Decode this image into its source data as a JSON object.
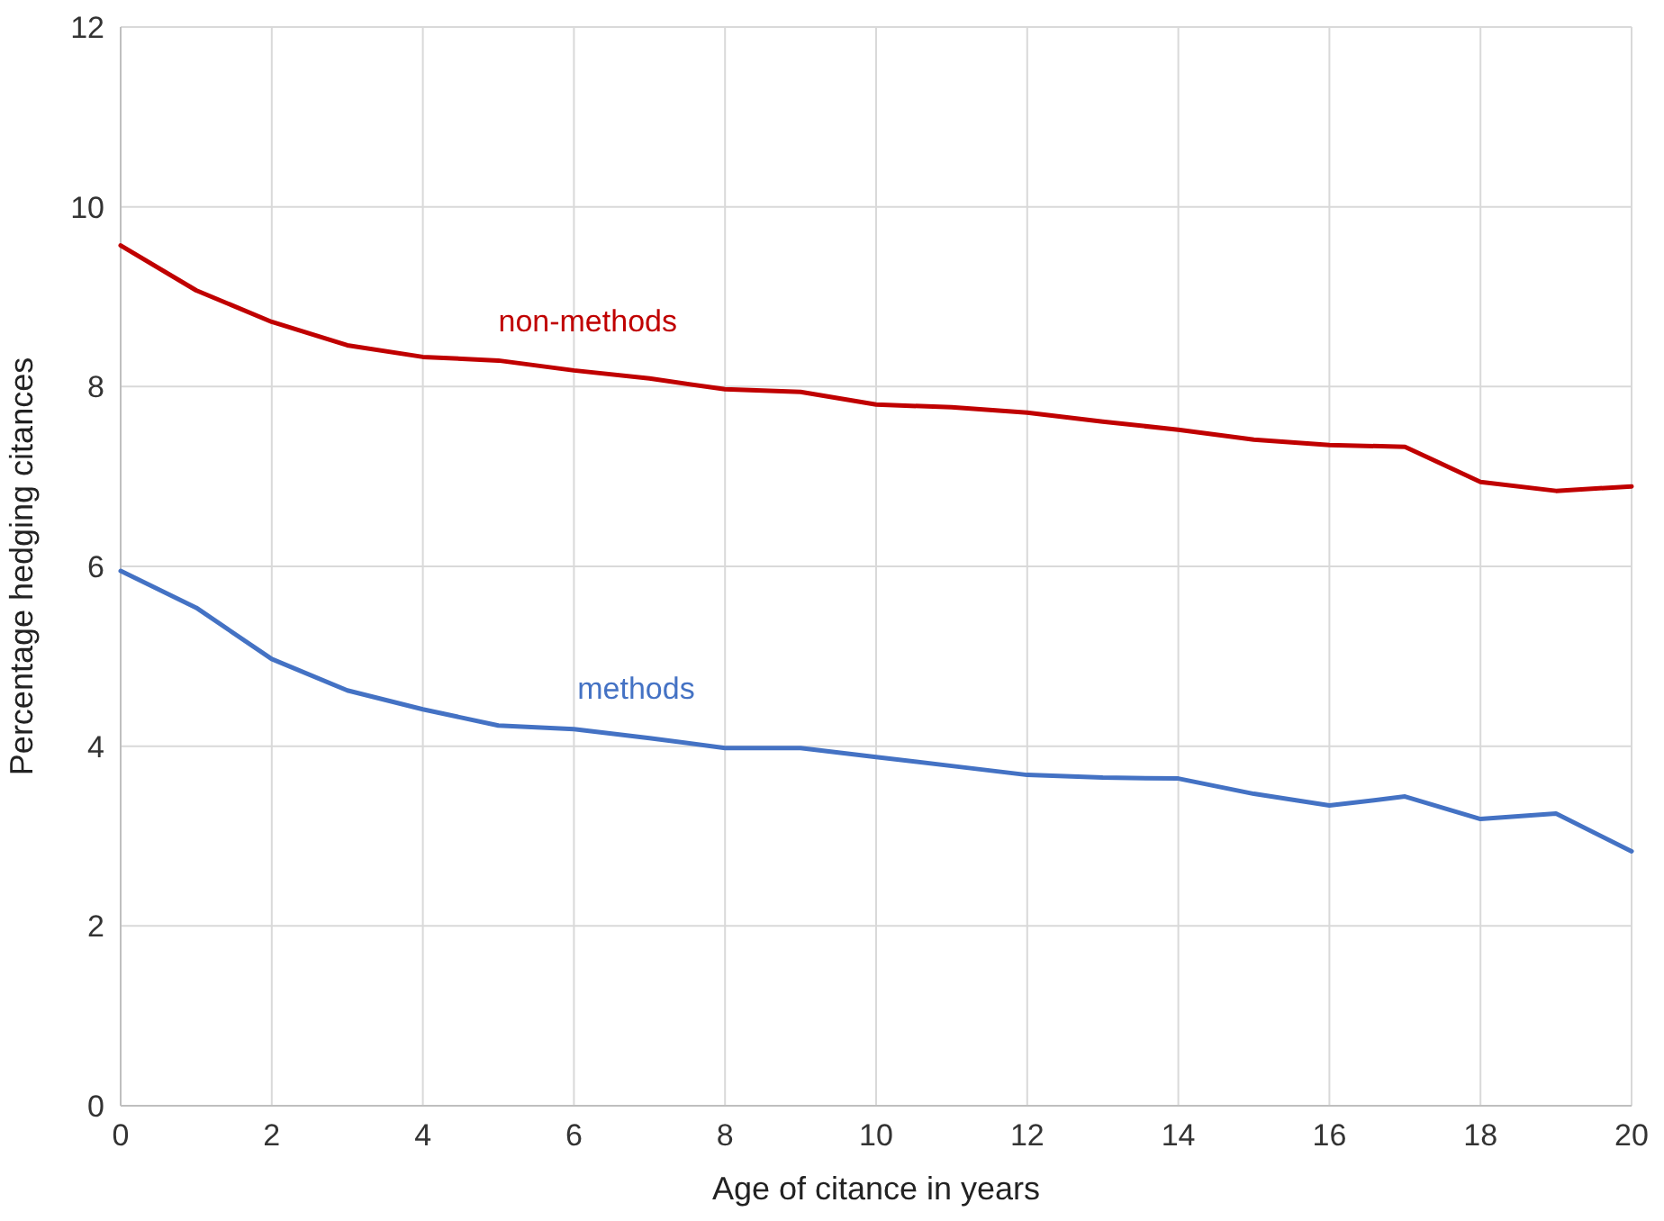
{
  "chart_data": {
    "type": "line",
    "xlabel": "Age of citance in years",
    "ylabel": "Percentage hedging citances",
    "x": [
      0,
      1,
      2,
      3,
      4,
      5,
      6,
      7,
      8,
      9,
      10,
      11,
      12,
      13,
      14,
      15,
      16,
      17,
      18,
      19,
      20
    ],
    "series": [
      {
        "name": "non-methods",
        "color": "#c00000",
        "values": [
          9.57,
          9.07,
          8.72,
          8.46,
          8.33,
          8.29,
          8.18,
          8.09,
          7.97,
          7.94,
          7.8,
          7.77,
          7.71,
          7.61,
          7.52,
          7.41,
          7.35,
          7.33,
          6.94,
          6.84,
          6.89
        ]
      },
      {
        "name": "methods",
        "color": "#4472c4",
        "values": [
          5.95,
          5.54,
          4.97,
          4.62,
          4.41,
          4.23,
          4.19,
          4.09,
          3.98,
          3.98,
          3.88,
          3.78,
          3.68,
          3.65,
          3.64,
          3.47,
          3.34,
          3.44,
          3.19,
          3.25,
          2.83
        ]
      }
    ],
    "xlim": [
      0,
      20
    ],
    "xticks": [
      0,
      2,
      4,
      6,
      8,
      10,
      12,
      14,
      16,
      18,
      20
    ],
    "ylim": [
      0,
      12
    ],
    "yticks": [
      0,
      2,
      4,
      6,
      8,
      10,
      12
    ],
    "grid": true,
    "legend": false,
    "marker": "none",
    "line_style": "solid"
  }
}
